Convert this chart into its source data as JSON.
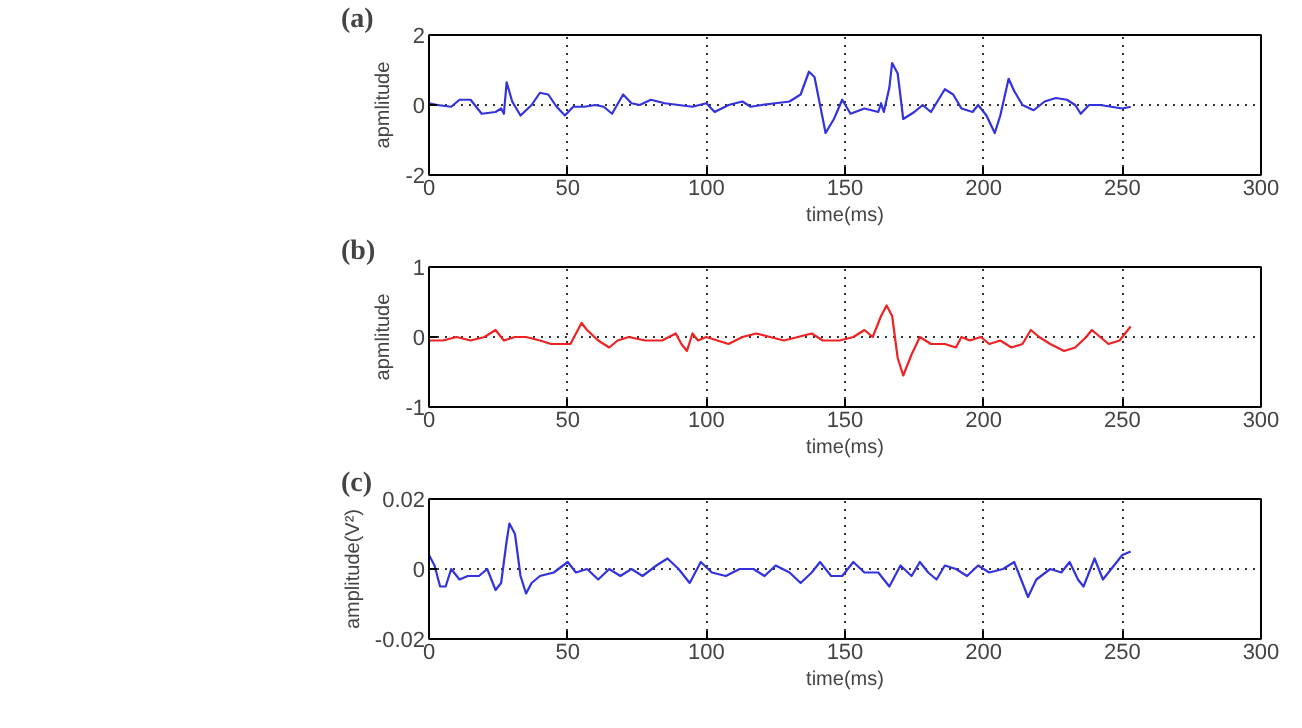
{
  "chart_data": [
    {
      "type": "line",
      "title": "(a)",
      "xlabel": "time(ms)",
      "ylabel": "apmlitude",
      "xlim": [
        0,
        300
      ],
      "ylim": [
        -2,
        2
      ],
      "xticks": [
        0,
        50,
        100,
        150,
        200,
        250,
        300
      ],
      "yticks": [
        -2,
        0,
        2
      ],
      "grid": true,
      "line_style": "solid",
      "x": [
        0,
        3,
        8,
        11,
        15,
        19,
        24,
        26,
        27,
        28,
        30,
        33,
        37,
        40,
        43,
        46,
        49,
        52,
        56,
        60,
        63,
        66,
        70,
        73,
        76,
        80,
        85,
        90,
        95,
        100,
        103,
        108,
        113,
        116,
        120,
        125,
        130,
        134,
        137,
        139,
        141,
        143,
        146,
        149,
        152,
        157,
        162,
        163,
        164,
        166,
        167,
        169,
        171,
        175,
        178,
        181,
        186,
        189,
        192,
        196,
        198,
        201,
        204,
        206,
        209,
        211,
        214,
        218,
        222,
        226,
        230,
        233,
        235,
        238,
        242,
        246,
        250,
        253
      ],
      "series": [
        {
          "color": "#3333dd",
          "values": [
            0.05,
            0,
            -0.05,
            0.15,
            0.15,
            -0.25,
            -0.2,
            -0.1,
            -0.25,
            0.65,
            0.1,
            -0.3,
            0,
            0.35,
            0.3,
            -0.05,
            -0.3,
            -0.05,
            -0.05,
            0,
            -0.05,
            -0.25,
            0.3,
            0.05,
            0,
            0.15,
            0.05,
            0,
            -0.05,
            0.05,
            -0.2,
            0,
            0.1,
            -0.05,
            0,
            0.05,
            0.1,
            0.3,
            0.95,
            0.8,
            0,
            -0.8,
            -0.4,
            0.15,
            -0.25,
            -0.1,
            -0.2,
            0.05,
            -0.2,
            0.5,
            1.2,
            0.9,
            -0.4,
            -0.2,
            0,
            -0.2,
            0.45,
            0.3,
            -0.1,
            -0.2,
            0,
            -0.3,
            -0.8,
            -0.3,
            0.75,
            0.4,
            0,
            -0.15,
            0.1,
            0.2,
            0.15,
            0,
            -0.25,
            0,
            0,
            -0.05,
            -0.1,
            -0.05
          ]
        }
      ]
    },
    {
      "type": "line",
      "title": "(b)",
      "xlabel": "time(ms)",
      "ylabel": "apmlitude",
      "xlim": [
        0,
        300
      ],
      "ylim": [
        -1,
        1
      ],
      "xticks": [
        0,
        50,
        100,
        150,
        200,
        250,
        300
      ],
      "yticks": [
        -1,
        0,
        1
      ],
      "grid": true,
      "line_style": "solid",
      "x": [
        0,
        5,
        10,
        15,
        20,
        24,
        27,
        31,
        35,
        40,
        44,
        48,
        51,
        55,
        57,
        61,
        65,
        68,
        72,
        78,
        84,
        89,
        91,
        93,
        95,
        97,
        100,
        104,
        108,
        113,
        118,
        123,
        128,
        133,
        138,
        142,
        148,
        153,
        157,
        160,
        163,
        165,
        167,
        169,
        171,
        174,
        177,
        181,
        186,
        190,
        192,
        195,
        199,
        202,
        206,
        210,
        214,
        217,
        220,
        224,
        229,
        233,
        237,
        239,
        242,
        245,
        249,
        253
      ],
      "series": [
        {
          "color": "#ee2222",
          "values": [
            -0.05,
            -0.05,
            0,
            -0.05,
            0,
            0.1,
            -0.05,
            0,
            0,
            -0.05,
            -0.1,
            -0.1,
            -0.1,
            0.2,
            0.1,
            -0.05,
            -0.15,
            -0.05,
            0,
            -0.05,
            -0.05,
            0.05,
            -0.1,
            -0.2,
            0.05,
            -0.05,
            0,
            -0.05,
            -0.1,
            0,
            0.05,
            0,
            -0.05,
            0,
            0.05,
            -0.05,
            -0.05,
            0,
            0.1,
            0,
            0.3,
            0.45,
            0.3,
            -0.3,
            -0.55,
            -0.25,
            0,
            -0.1,
            -0.1,
            -0.15,
            0,
            -0.05,
            0,
            -0.1,
            -0.05,
            -0.15,
            -0.1,
            0.1,
            0,
            -0.1,
            -0.2,
            -0.15,
            0,
            0.1,
            0,
            -0.1,
            -0.05,
            0.15
          ]
        }
      ]
    },
    {
      "type": "line",
      "title": "(c)",
      "xlabel": "time(ms)",
      "ylabel": "amplitude(V²)",
      "xlim": [
        0,
        300
      ],
      "ylim": [
        -0.02,
        0.02
      ],
      "xticks": [
        0,
        50,
        100,
        150,
        200,
        250,
        300
      ],
      "yticks": [
        -0.02,
        0,
        0.02
      ],
      "grid": true,
      "line_style": "solid",
      "x": [
        0,
        2,
        4,
        6,
        8,
        11,
        14,
        18,
        21,
        24,
        26,
        28,
        29,
        31,
        33,
        35,
        37,
        40,
        45,
        50,
        53,
        57,
        61,
        65,
        69,
        73,
        77,
        82,
        86,
        90,
        94,
        98,
        102,
        107,
        112,
        117,
        121,
        125,
        130,
        134,
        138,
        141,
        145,
        149,
        153,
        157,
        162,
        166,
        170,
        174,
        177,
        180,
        183,
        186,
        190,
        194,
        198,
        202,
        207,
        211,
        213,
        216,
        219,
        224,
        228,
        231,
        234,
        236,
        240,
        243,
        246,
        250,
        253
      ],
      "series": [
        {
          "color": "#3333dd",
          "values": [
            0.004,
            0.001,
            -0.005,
            -0.005,
            0,
            -0.003,
            -0.002,
            -0.002,
            0,
            -0.006,
            -0.004,
            0.008,
            0.013,
            0.01,
            -0.002,
            -0.007,
            -0.004,
            -0.002,
            -0.001,
            0.002,
            -0.001,
            0,
            -0.003,
            0,
            -0.002,
            0,
            -0.002,
            0.001,
            0.003,
            0,
            -0.004,
            0.002,
            -0.001,
            -0.002,
            0,
            0,
            -0.002,
            0.001,
            -0.001,
            -0.004,
            -0.001,
            0.002,
            -0.002,
            -0.002,
            0.002,
            -0.001,
            -0.001,
            -0.005,
            0.001,
            -0.002,
            0.002,
            -0.001,
            -0.003,
            0.001,
            0,
            -0.002,
            0.001,
            -0.001,
            0,
            0.002,
            -0.002,
            -0.008,
            -0.003,
            0,
            -0.001,
            0.002,
            -0.003,
            -0.005,
            0.003,
            -0.003,
            0,
            0.004,
            0.005
          ]
        }
      ]
    }
  ]
}
